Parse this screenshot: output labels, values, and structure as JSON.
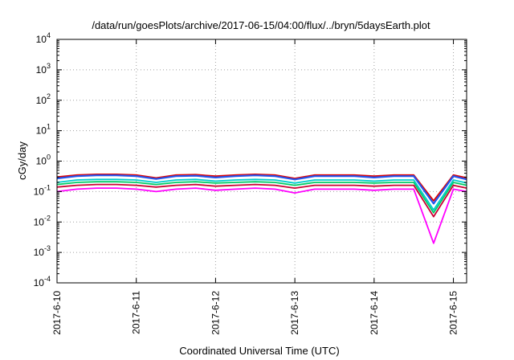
{
  "chart_data": {
    "type": "line",
    "title": "/data/run/goesPlots/archive/2017-06-15/04:00/flux/../bryn/5daysEarth.plot",
    "xlabel": "Coordinated Universal Time (UTC)",
    "ylabel": "cGy/day",
    "yscale": "log",
    "ylim": [
      0.0001,
      10000
    ],
    "xlim": [
      "2017-06-10T00:00",
      "2017-06-15T04:00"
    ],
    "grid": true,
    "x_ticks": [
      "2017-6-10",
      "2017-6-11",
      "2017-6-12",
      "2017-6-13",
      "2017-6-14",
      "2017-6-15"
    ],
    "y_ticks": [
      {
        "value": 0.0001,
        "base": "10",
        "exp": "-4"
      },
      {
        "value": 0.001,
        "base": "10",
        "exp": "-3"
      },
      {
        "value": 0.01,
        "base": "10",
        "exp": "-2"
      },
      {
        "value": 0.1,
        "base": "10",
        "exp": "-1"
      },
      {
        "value": 1,
        "base": "10",
        "exp": "0"
      },
      {
        "value": 10,
        "base": "10",
        "exp": "1"
      },
      {
        "value": 100,
        "base": "10",
        "exp": "2"
      },
      {
        "value": 1000,
        "base": "10",
        "exp": "3"
      },
      {
        "value": 10000,
        "base": "10",
        "exp": "4"
      }
    ],
    "x_days": [
      0.0,
      0.25,
      0.5,
      0.75,
      1.0,
      1.25,
      1.5,
      1.75,
      2.0,
      2.25,
      2.5,
      2.75,
      3.0,
      3.25,
      3.5,
      3.75,
      4.0,
      4.25,
      4.5,
      4.75,
      5.0,
      5.17
    ],
    "series": [
      {
        "color": "#ff00ff",
        "values": [
          0.1,
          0.12,
          0.13,
          0.13,
          0.12,
          0.1,
          0.12,
          0.13,
          0.11,
          0.12,
          0.13,
          0.12,
          0.09,
          0.12,
          0.12,
          0.12,
          0.11,
          0.12,
          0.12,
          0.002,
          0.12,
          0.1
        ]
      },
      {
        "color": "#cc0033",
        "values": [
          0.14,
          0.16,
          0.17,
          0.17,
          0.16,
          0.14,
          0.16,
          0.17,
          0.15,
          0.16,
          0.17,
          0.16,
          0.13,
          0.16,
          0.16,
          0.16,
          0.15,
          0.16,
          0.16,
          0.015,
          0.16,
          0.13
        ]
      },
      {
        "color": "#00cc66",
        "values": [
          0.17,
          0.2,
          0.21,
          0.21,
          0.2,
          0.17,
          0.2,
          0.21,
          0.19,
          0.2,
          0.21,
          0.2,
          0.16,
          0.2,
          0.2,
          0.2,
          0.19,
          0.2,
          0.2,
          0.02,
          0.2,
          0.16
        ]
      },
      {
        "color": "#00cccc",
        "values": [
          0.2,
          0.24,
          0.25,
          0.25,
          0.24,
          0.2,
          0.24,
          0.25,
          0.22,
          0.24,
          0.25,
          0.24,
          0.19,
          0.24,
          0.24,
          0.24,
          0.22,
          0.24,
          0.24,
          0.025,
          0.24,
          0.19
        ]
      },
      {
        "color": "#e00000",
        "values": [
          0.3,
          0.35,
          0.37,
          0.37,
          0.35,
          0.28,
          0.35,
          0.36,
          0.32,
          0.35,
          0.37,
          0.35,
          0.27,
          0.35,
          0.35,
          0.35,
          0.32,
          0.35,
          0.35,
          0.05,
          0.35,
          0.28
        ]
      },
      {
        "color": "#2255ee",
        "values": [
          0.27,
          0.32,
          0.34,
          0.34,
          0.32,
          0.26,
          0.32,
          0.33,
          0.29,
          0.32,
          0.34,
          0.32,
          0.25,
          0.32,
          0.32,
          0.32,
          0.29,
          0.32,
          0.32,
          0.04,
          0.32,
          0.25
        ]
      }
    ]
  }
}
